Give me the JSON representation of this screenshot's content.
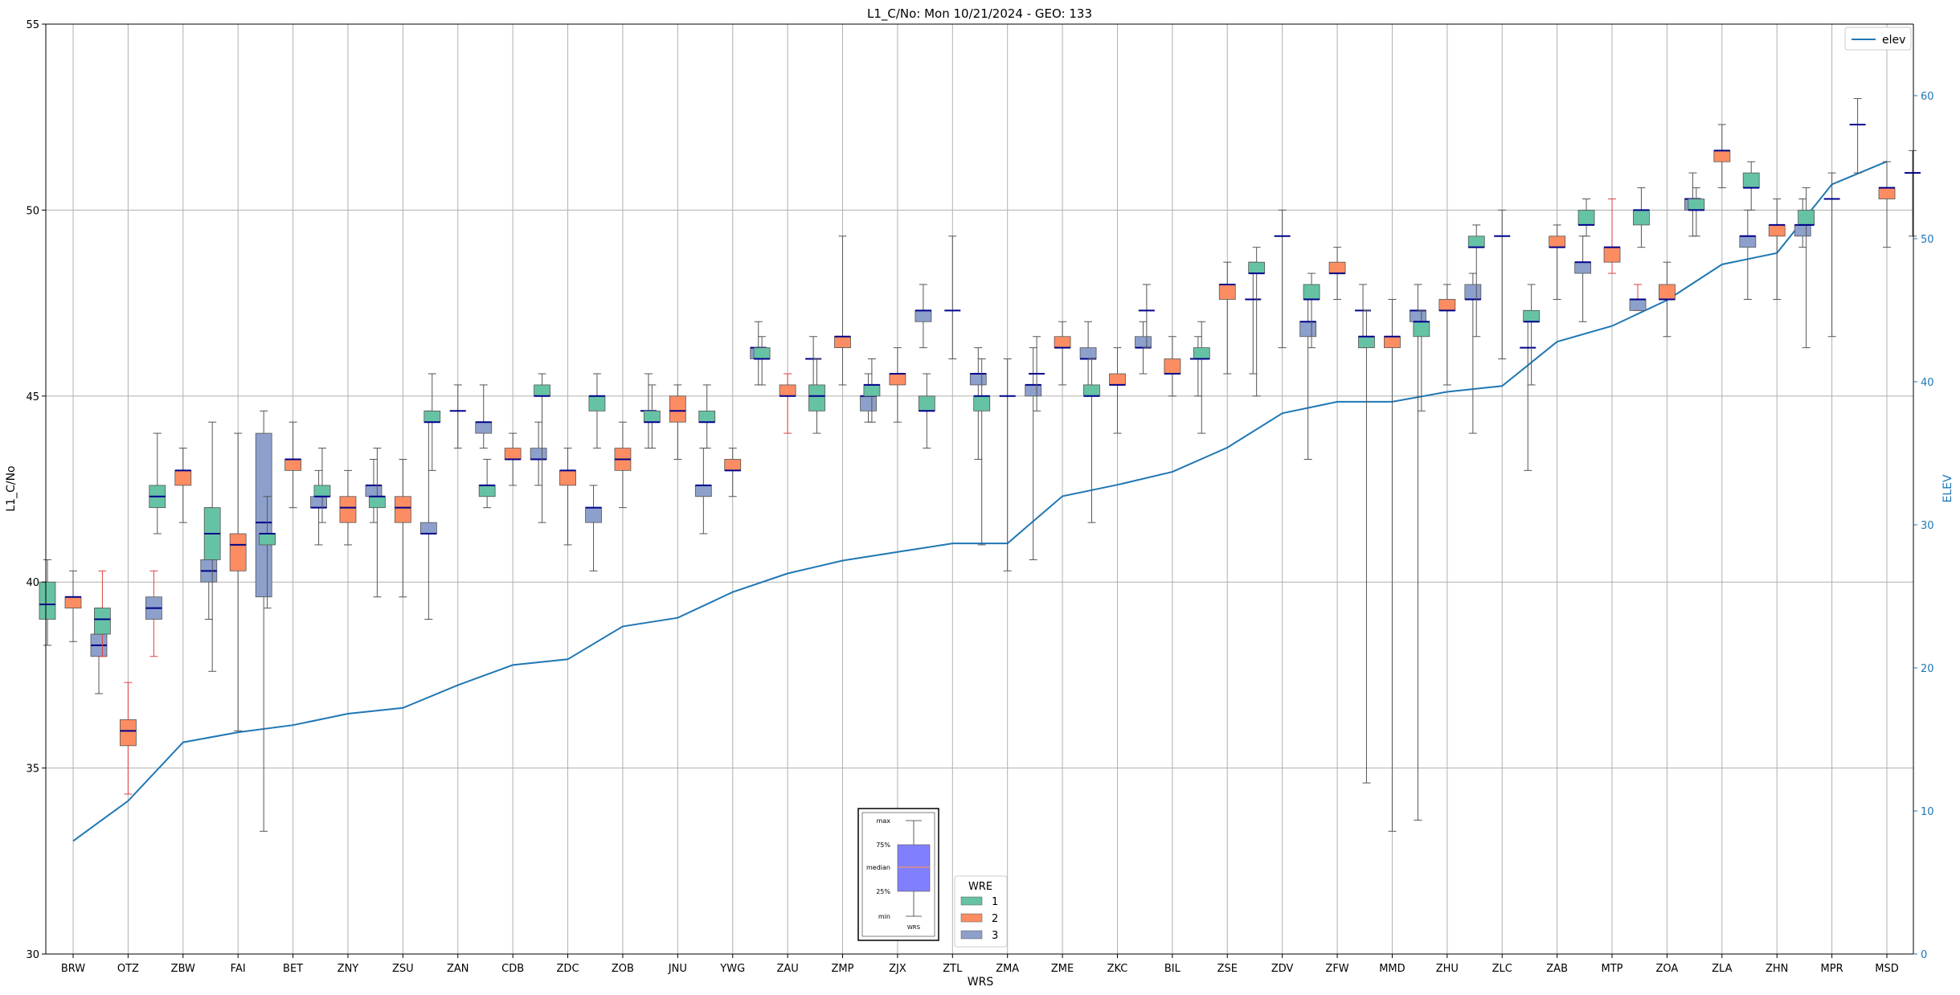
{
  "chart_data": {
    "type": "box",
    "title": "L1_C/No: Mon 10/21/2024 - GEO: 133",
    "xlabel": "WRS",
    "ylabel": "L1_C/No",
    "y2label": "ELEV",
    "ylim": [
      30,
      55
    ],
    "y2lim": [
      0,
      65
    ],
    "yticks": [
      30,
      35,
      40,
      45,
      50,
      55
    ],
    "y2ticks": [
      0,
      10,
      20,
      30,
      40,
      50,
      60
    ],
    "grid": true,
    "categories": [
      "BRW",
      "OTZ",
      "ZBW",
      "FAI",
      "BET",
      "ZNY",
      "ZSU",
      "ZAN",
      "CDB",
      "ZDC",
      "ZOB",
      "JNU",
      "YWG",
      "ZAU",
      "ZMP",
      "ZJX",
      "ZTL",
      "ZMA",
      "ZME",
      "ZKC",
      "BIL",
      "ZSE",
      "ZDV",
      "ZFW",
      "MMD",
      "ZHU",
      "ZLC",
      "ZAB",
      "MTP",
      "ZOA",
      "ZLA",
      "ZHN",
      "MPR",
      "MSD"
    ],
    "legend_title": "WRE",
    "legend_labels": [
      "1",
      "2",
      "3"
    ],
    "colors": {
      "1": "#66c2a5",
      "2": "#fc8d62",
      "3": "#8da0cb",
      "elev": "#1f77b4",
      "median": "#00008b"
    },
    "elev": {
      "name": "elev",
      "values": [
        7.9,
        10.7,
        14.8,
        15.5,
        16.0,
        16.8,
        17.2,
        18.8,
        20.2,
        20.6,
        22.9,
        23.5,
        25.3,
        26.6,
        27.5,
        28.1,
        28.7,
        28.7,
        32.0,
        32.8,
        33.7,
        35.4,
        37.8,
        38.6,
        38.6,
        39.3,
        39.7,
        42.8,
        43.9,
        45.7,
        48.2,
        49.0,
        53.8,
        55.4
      ]
    },
    "boxes": [
      {
        "site": "BRW",
        "wre": "1",
        "min": 38.3,
        "q1": 39.0,
        "median": 39.4,
        "q3": 40.0,
        "max": 40.6
      },
      {
        "site": "BRW",
        "wre": "2",
        "min": 38.4,
        "q1": 39.3,
        "median": 39.6,
        "q3": 39.6,
        "max": 40.3
      },
      {
        "site": "BRW",
        "wre": "3",
        "min": 37.0,
        "q1": 38.0,
        "median": 38.3,
        "q3": 38.6,
        "max": 39.3
      },
      {
        "site": "OTZ",
        "wre": "1",
        "min": 38.0,
        "q1": 38.6,
        "median": 39.0,
        "q3": 39.3,
        "max": 40.3,
        "flag": true
      },
      {
        "site": "OTZ",
        "wre": "2",
        "min": 34.3,
        "q1": 35.6,
        "median": 36.0,
        "q3": 36.3,
        "max": 37.3,
        "flag": true
      },
      {
        "site": "OTZ",
        "wre": "3",
        "min": 38.0,
        "q1": 39.0,
        "median": 39.3,
        "q3": 39.6,
        "max": 40.3,
        "flag": true
      },
      {
        "site": "ZBW",
        "wre": "1",
        "min": 41.3,
        "q1": 42.0,
        "median": 42.3,
        "q3": 42.6,
        "max": 44.0
      },
      {
        "site": "ZBW",
        "wre": "2",
        "min": 41.6,
        "q1": 42.6,
        "median": 43.0,
        "q3": 43.0,
        "max": 43.6
      },
      {
        "site": "ZBW",
        "wre": "3",
        "min": 39.0,
        "q1": 40.0,
        "median": 40.3,
        "q3": 40.6,
        "max": 42.0
      },
      {
        "site": "FAI",
        "wre": "1",
        "min": 37.6,
        "q1": 40.6,
        "median": 41.3,
        "q3": 42.0,
        "max": 44.3
      },
      {
        "site": "FAI",
        "wre": "2",
        "min": 36.0,
        "q1": 40.3,
        "median": 41.0,
        "q3": 41.3,
        "max": 44.0
      },
      {
        "site": "FAI",
        "wre": "3",
        "min": 33.3,
        "q1": 39.6,
        "median": 41.6,
        "q3": 44.0,
        "max": 44.6
      },
      {
        "site": "BET",
        "wre": "1",
        "min": 39.3,
        "q1": 41.0,
        "median": 41.3,
        "q3": 41.3,
        "max": 42.3
      },
      {
        "site": "BET",
        "wre": "2",
        "min": 42.0,
        "q1": 43.0,
        "median": 43.3,
        "q3": 43.3,
        "max": 44.3
      },
      {
        "site": "BET",
        "wre": "3",
        "min": 41.0,
        "q1": 42.0,
        "median": 42.0,
        "q3": 42.3,
        "max": 43.0
      },
      {
        "site": "ZNY",
        "wre": "1",
        "min": 41.6,
        "q1": 42.3,
        "median": 42.3,
        "q3": 42.6,
        "max": 43.6
      },
      {
        "site": "ZNY",
        "wre": "2",
        "min": 41.0,
        "q1": 41.6,
        "median": 42.0,
        "q3": 42.3,
        "max": 43.0
      },
      {
        "site": "ZNY",
        "wre": "3",
        "min": 41.6,
        "q1": 42.3,
        "median": 42.6,
        "q3": 42.6,
        "max": 43.3
      },
      {
        "site": "ZSU",
        "wre": "1",
        "min": 39.6,
        "q1": 42.0,
        "median": 42.3,
        "q3": 42.3,
        "max": 43.6
      },
      {
        "site": "ZSU",
        "wre": "2",
        "min": 39.6,
        "q1": 41.6,
        "median": 42.0,
        "q3": 42.3,
        "max": 43.3
      },
      {
        "site": "ZSU",
        "wre": "3",
        "min": 39.0,
        "q1": 41.3,
        "median": 41.3,
        "q3": 41.6,
        "max": 44.6
      },
      {
        "site": "ZAN",
        "wre": "1",
        "min": 43.0,
        "q1": 44.3,
        "median": 44.3,
        "q3": 44.6,
        "max": 45.6
      },
      {
        "site": "ZAN",
        "wre": "2",
        "min": 43.6,
        "q1": 44.6,
        "median": 44.6,
        "q3": 44.6,
        "max": 45.3
      },
      {
        "site": "ZAN",
        "wre": "3",
        "min": 43.6,
        "q1": 44.0,
        "median": 44.3,
        "q3": 44.3,
        "max": 45.3
      },
      {
        "site": "CDB",
        "wre": "1",
        "min": 42.0,
        "q1": 42.3,
        "median": 42.6,
        "q3": 42.6,
        "max": 43.3
      },
      {
        "site": "CDB",
        "wre": "2",
        "min": 42.6,
        "q1": 43.3,
        "median": 43.3,
        "q3": 43.6,
        "max": 44.0
      },
      {
        "site": "CDB",
        "wre": "3",
        "min": 42.6,
        "q1": 43.3,
        "median": 43.3,
        "q3": 43.6,
        "max": 44.3
      },
      {
        "site": "ZDC",
        "wre": "1",
        "min": 41.6,
        "q1": 45.0,
        "median": 45.0,
        "q3": 45.3,
        "max": 45.6
      },
      {
        "site": "ZDC",
        "wre": "2",
        "min": 41.0,
        "q1": 42.6,
        "median": 43.0,
        "q3": 43.0,
        "max": 43.6
      },
      {
        "site": "ZDC",
        "wre": "3",
        "min": 40.3,
        "q1": 41.6,
        "median": 42.0,
        "q3": 42.0,
        "max": 42.6
      },
      {
        "site": "ZOB",
        "wre": "1",
        "min": 43.6,
        "q1": 44.6,
        "median": 45.0,
        "q3": 45.0,
        "max": 45.6
      },
      {
        "site": "ZOB",
        "wre": "2",
        "min": 42.0,
        "q1": 43.0,
        "median": 43.3,
        "q3": 43.6,
        "max": 44.3
      },
      {
        "site": "ZOB",
        "wre": "3",
        "min": 43.6,
        "q1": 44.6,
        "median": 44.6,
        "q3": 44.6,
        "max": 45.6
      },
      {
        "site": "JNU",
        "wre": "1",
        "min": 43.6,
        "q1": 44.3,
        "median": 44.3,
        "q3": 44.6,
        "max": 45.3
      },
      {
        "site": "JNU",
        "wre": "2",
        "min": 43.3,
        "q1": 44.3,
        "median": 44.6,
        "q3": 45.0,
        "max": 45.3
      },
      {
        "site": "JNU",
        "wre": "3",
        "min": 41.3,
        "q1": 42.3,
        "median": 42.6,
        "q3": 42.6,
        "max": 43.6
      },
      {
        "site": "YWG",
        "wre": "1",
        "min": 43.6,
        "q1": 44.3,
        "median": 44.3,
        "q3": 44.6,
        "max": 45.3
      },
      {
        "site": "YWG",
        "wre": "2",
        "min": 42.3,
        "q1": 43.0,
        "median": 43.0,
        "q3": 43.3,
        "max": 43.6
      },
      {
        "site": "YWG",
        "wre": "3",
        "min": 45.3,
        "q1": 46.0,
        "median": 46.3,
        "q3": 46.3,
        "max": 47.0
      },
      {
        "site": "ZAU",
        "wre": "1",
        "min": 45.3,
        "q1": 46.0,
        "median": 46.0,
        "q3": 46.3,
        "max": 46.6
      },
      {
        "site": "ZAU",
        "wre": "2",
        "min": 44.0,
        "q1": 45.0,
        "median": 45.0,
        "q3": 45.3,
        "max": 45.6,
        "flag": true
      },
      {
        "site": "ZAU",
        "wre": "3",
        "min": 45.3,
        "q1": 46.0,
        "median": 46.0,
        "q3": 46.0,
        "max": 46.6
      },
      {
        "site": "ZMP",
        "wre": "1",
        "min": 44.0,
        "q1": 44.6,
        "median": 45.0,
        "q3": 45.3,
        "max": 46.0
      },
      {
        "site": "ZMP",
        "wre": "2",
        "min": 45.3,
        "q1": 46.3,
        "median": 46.6,
        "q3": 46.6,
        "max": 49.3
      },
      {
        "site": "ZMP",
        "wre": "3",
        "min": 44.3,
        "q1": 44.6,
        "median": 45.0,
        "q3": 45.0,
        "max": 45.6
      },
      {
        "site": "ZJX",
        "wre": "1",
        "min": 44.3,
        "q1": 45.0,
        "median": 45.3,
        "q3": 45.3,
        "max": 46.0
      },
      {
        "site": "ZJX",
        "wre": "2",
        "min": 44.3,
        "q1": 45.3,
        "median": 45.6,
        "q3": 45.6,
        "max": 46.3
      },
      {
        "site": "ZJX",
        "wre": "3",
        "min": 46.3,
        "q1": 47.0,
        "median": 47.3,
        "q3": 47.3,
        "max": 48.0
      },
      {
        "site": "ZTL",
        "wre": "1",
        "min": 43.6,
        "q1": 44.6,
        "median": 44.6,
        "q3": 45.0,
        "max": 45.6
      },
      {
        "site": "ZTL",
        "wre": "2",
        "min": 46.0,
        "q1": 47.3,
        "median": 47.3,
        "q3": 47.3,
        "max": 49.3
      },
      {
        "site": "ZTL",
        "wre": "3",
        "min": 43.3,
        "q1": 45.3,
        "median": 45.6,
        "q3": 45.6,
        "max": 46.3
      },
      {
        "site": "ZMA",
        "wre": "1",
        "min": 41.0,
        "q1": 44.6,
        "median": 45.0,
        "q3": 45.0,
        "max": 46.0
      },
      {
        "site": "ZMA",
        "wre": "2",
        "min": 40.3,
        "q1": 45.0,
        "median": 45.0,
        "q3": 45.0,
        "max": 46.0
      },
      {
        "site": "ZMA",
        "wre": "3",
        "min": 40.6,
        "q1": 45.0,
        "median": 45.3,
        "q3": 45.3,
        "max": 46.3
      },
      {
        "site": "ZME",
        "wre": "1",
        "min": 44.6,
        "q1": 45.6,
        "median": 45.6,
        "q3": 45.6,
        "max": 46.6
      },
      {
        "site": "ZME",
        "wre": "2",
        "min": 45.3,
        "q1": 46.3,
        "median": 46.3,
        "q3": 46.6,
        "max": 47.0
      },
      {
        "site": "ZME",
        "wre": "3",
        "min": 45.3,
        "q1": 46.0,
        "median": 46.0,
        "q3": 46.3,
        "max": 47.0
      },
      {
        "site": "ZKC",
        "wre": "1",
        "min": 41.6,
        "q1": 45.0,
        "median": 45.0,
        "q3": 45.3,
        "max": 46.0
      },
      {
        "site": "ZKC",
        "wre": "2",
        "min": 44.0,
        "q1": 45.3,
        "median": 45.3,
        "q3": 45.6,
        "max": 46.3
      },
      {
        "site": "ZKC",
        "wre": "3",
        "min": 45.6,
        "q1": 46.3,
        "median": 46.3,
        "q3": 46.6,
        "max": 47.0
      },
      {
        "site": "BIL",
        "wre": "1",
        "min": 46.3,
        "q1": 47.3,
        "median": 47.3,
        "q3": 47.3,
        "max": 48.0
      },
      {
        "site": "BIL",
        "wre": "2",
        "min": 45.0,
        "q1": 45.6,
        "median": 45.6,
        "q3": 46.0,
        "max": 46.6
      },
      {
        "site": "BIL",
        "wre": "3",
        "min": 45.0,
        "q1": 46.0,
        "median": 46.0,
        "q3": 46.0,
        "max": 46.6
      },
      {
        "site": "ZSE",
        "wre": "1",
        "min": 44.0,
        "q1": 46.0,
        "median": 46.0,
        "q3": 46.3,
        "max": 47.0
      },
      {
        "site": "ZSE",
        "wre": "2",
        "min": 45.6,
        "q1": 47.6,
        "median": 48.0,
        "q3": 48.0,
        "max": 48.6
      },
      {
        "site": "ZSE",
        "wre": "3",
        "min": 45.6,
        "q1": 47.6,
        "median": 47.6,
        "q3": 47.6,
        "max": 48.6
      },
      {
        "site": "ZDV",
        "wre": "1",
        "min": 45.0,
        "q1": 48.3,
        "median": 48.3,
        "q3": 48.6,
        "max": 49.0
      },
      {
        "site": "ZDV",
        "wre": "2",
        "min": 46.3,
        "q1": 49.3,
        "median": 49.3,
        "q3": 49.3,
        "max": 50.0
      },
      {
        "site": "ZDV",
        "wre": "3",
        "min": 43.3,
        "q1": 46.6,
        "median": 47.0,
        "q3": 47.0,
        "max": 47.6
      },
      {
        "site": "ZFW",
        "wre": "1",
        "min": 46.3,
        "q1": 47.6,
        "median": 47.6,
        "q3": 48.0,
        "max": 48.3
      },
      {
        "site": "ZFW",
        "wre": "2",
        "min": 47.6,
        "q1": 48.3,
        "median": 48.3,
        "q3": 48.6,
        "max": 49.0
      },
      {
        "site": "ZFW",
        "wre": "3",
        "min": 46.3,
        "q1": 47.3,
        "median": 47.3,
        "q3": 47.3,
        "max": 48.0
      },
      {
        "site": "MMD",
        "wre": "1",
        "min": 34.6,
        "q1": 46.3,
        "median": 46.6,
        "q3": 46.6,
        "max": 47.3
      },
      {
        "site": "MMD",
        "wre": "2",
        "min": 33.3,
        "q1": 46.3,
        "median": 46.6,
        "q3": 46.6,
        "max": 47.6
      },
      {
        "site": "MMD",
        "wre": "3",
        "min": 33.6,
        "q1": 47.0,
        "median": 47.3,
        "q3": 47.3,
        "max": 48.0
      },
      {
        "site": "ZHU",
        "wre": "1",
        "min": 44.6,
        "q1": 46.6,
        "median": 47.0,
        "q3": 47.0,
        "max": 47.3
      },
      {
        "site": "ZHU",
        "wre": "2",
        "min": 45.3,
        "q1": 47.3,
        "median": 47.3,
        "q3": 47.6,
        "max": 48.0
      },
      {
        "site": "ZHU",
        "wre": "3",
        "min": 44.0,
        "q1": 47.6,
        "median": 47.6,
        "q3": 48.0,
        "max": 48.3
      },
      {
        "site": "ZLC",
        "wre": "1",
        "min": 46.6,
        "q1": 49.0,
        "median": 49.0,
        "q3": 49.3,
        "max": 49.6
      },
      {
        "site": "ZLC",
        "wre": "2",
        "min": 46.0,
        "q1": 49.3,
        "median": 49.3,
        "q3": 49.3,
        "max": 50.0
      },
      {
        "site": "ZLC",
        "wre": "3",
        "min": 43.0,
        "q1": 46.3,
        "median": 46.3,
        "q3": 46.3,
        "max": 47.3
      },
      {
        "site": "ZAB",
        "wre": "1",
        "min": 45.3,
        "q1": 47.0,
        "median": 47.0,
        "q3": 47.3,
        "max": 48.0
      },
      {
        "site": "ZAB",
        "wre": "2",
        "min": 47.6,
        "q1": 49.0,
        "median": 49.0,
        "q3": 49.3,
        "max": 49.6
      },
      {
        "site": "ZAB",
        "wre": "3",
        "min": 47.0,
        "q1": 48.3,
        "median": 48.6,
        "q3": 48.6,
        "max": 49.3
      },
      {
        "site": "MTP",
        "wre": "1",
        "min": 49.3,
        "q1": 49.6,
        "median": 49.6,
        "q3": 50.0,
        "max": 50.3
      },
      {
        "site": "MTP",
        "wre": "2",
        "min": 48.3,
        "q1": 48.6,
        "median": 49.0,
        "q3": 49.0,
        "max": 50.3,
        "flag": true
      },
      {
        "site": "MTP",
        "wre": "3",
        "min": 47.3,
        "q1": 47.3,
        "median": 47.6,
        "q3": 47.6,
        "max": 48.0,
        "flag": true
      },
      {
        "site": "ZOA",
        "wre": "1",
        "min": 49.0,
        "q1": 49.6,
        "median": 50.0,
        "q3": 50.0,
        "max": 50.6
      },
      {
        "site": "ZOA",
        "wre": "2",
        "min": 46.6,
        "q1": 47.6,
        "median": 47.6,
        "q3": 48.0,
        "max": 48.6
      },
      {
        "site": "ZOA",
        "wre": "3",
        "min": 49.3,
        "q1": 50.0,
        "median": 50.3,
        "q3": 50.3,
        "max": 51.0
      },
      {
        "site": "ZLA",
        "wre": "1",
        "min": 49.3,
        "q1": 50.0,
        "median": 50.0,
        "q3": 50.3,
        "max": 50.6
      },
      {
        "site": "ZLA",
        "wre": "2",
        "min": 50.6,
        "q1": 51.3,
        "median": 51.6,
        "q3": 51.6,
        "max": 52.3
      },
      {
        "site": "ZLA",
        "wre": "3",
        "min": 47.6,
        "q1": 49.0,
        "median": 49.3,
        "q3": 49.3,
        "max": 50.0
      },
      {
        "site": "ZHN",
        "wre": "1",
        "min": 50.0,
        "q1": 50.6,
        "median": 50.6,
        "q3": 51.0,
        "max": 51.3
      },
      {
        "site": "ZHN",
        "wre": "2",
        "min": 47.6,
        "q1": 49.3,
        "median": 49.6,
        "q3": 49.6,
        "max": 50.3
      },
      {
        "site": "ZHN",
        "wre": "3",
        "min": 49.0,
        "q1": 49.3,
        "median": 49.6,
        "q3": 49.6,
        "max": 50.3
      },
      {
        "site": "MPR",
        "wre": "1",
        "min": 46.3,
        "q1": 49.6,
        "median": 49.6,
        "q3": 50.0,
        "max": 50.6
      },
      {
        "site": "MPR",
        "wre": "2",
        "min": 46.6,
        "q1": 50.3,
        "median": 50.3,
        "q3": 50.3,
        "max": 51.0
      },
      {
        "site": "MPR",
        "wre": "3",
        "min": 51.0,
        "q1": 52.3,
        "median": 52.3,
        "q3": 52.3,
        "max": 53.0
      },
      {
        "site": "MSD",
        "wre": "2",
        "min": 49.0,
        "q1": 50.3,
        "median": 50.6,
        "q3": 50.6,
        "max": 51.3
      },
      {
        "site": "MSD",
        "wre": "3",
        "min": 49.3,
        "q1": 51.0,
        "median": 51.0,
        "q3": 51.0,
        "max": 51.6
      }
    ]
  },
  "legend": {
    "elev_label": "elev"
  },
  "inset": {
    "labels": [
      "max",
      "75%",
      "median",
      "25%",
      "min"
    ],
    "caption": "WRS"
  }
}
